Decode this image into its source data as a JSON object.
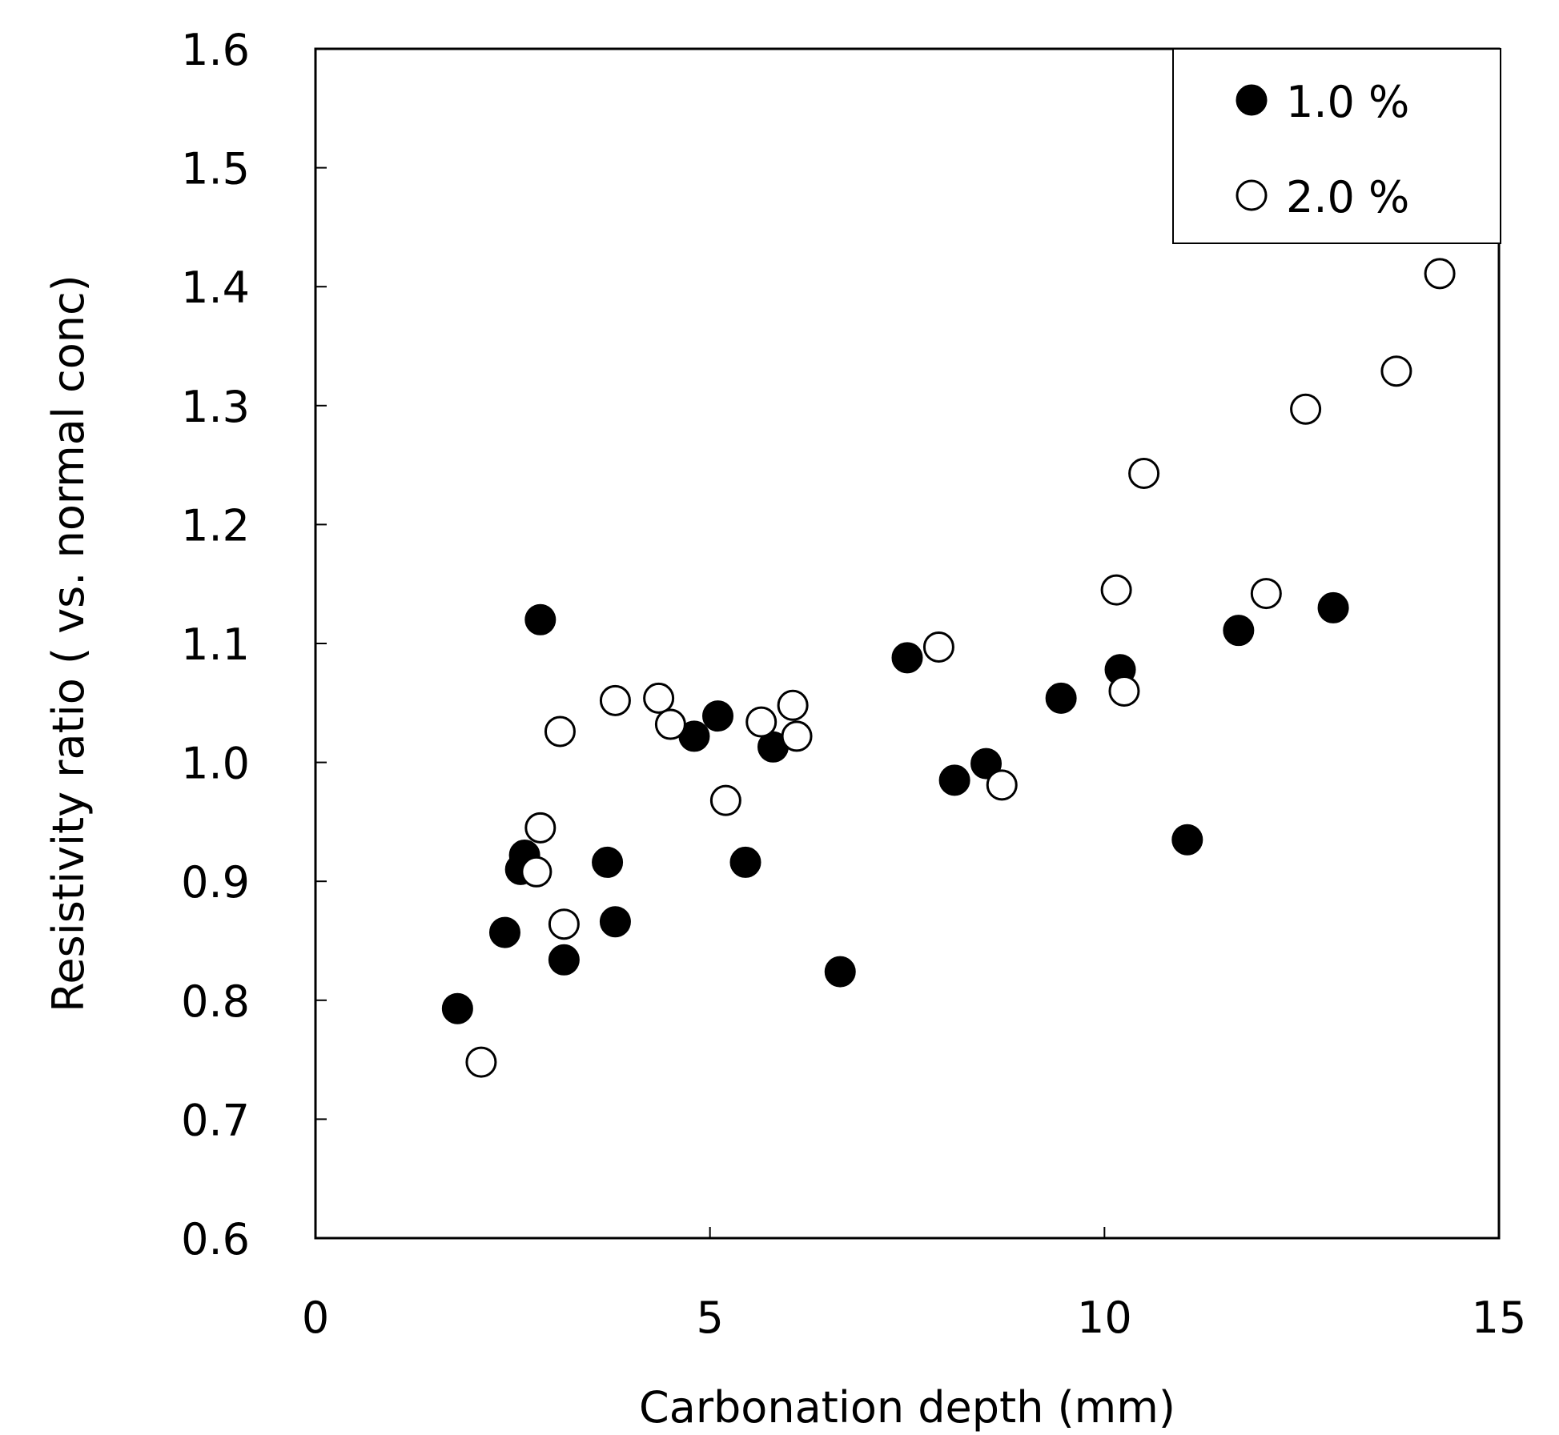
{
  "chart_data": {
    "type": "scatter",
    "title": "",
    "xlabel": "Carbonation depth (mm)",
    "ylabel": "Resistivity ratio ( vs. normal conc)",
    "xlim": [
      0,
      15
    ],
    "ylim": [
      0.6,
      1.6
    ],
    "xticks": [
      0,
      5,
      10,
      15
    ],
    "xtick_labels": [
      "0",
      "5",
      "10",
      "15"
    ],
    "yticks": [
      0.6,
      0.7,
      0.8,
      0.9,
      1.0,
      1.1,
      1.2,
      1.3,
      1.4,
      1.5,
      1.6
    ],
    "ytick_labels": [
      "0.6",
      "0.7",
      "0.8",
      "0.9",
      "1.0",
      "1.1",
      "1.2",
      "1.3",
      "1.4",
      "1.5",
      "1.6"
    ],
    "grid": false,
    "legend_position": "top-right",
    "series": [
      {
        "name": "1.0 %",
        "marker": "filled-circle",
        "color": "#000000",
        "points": [
          [
            1.8,
            0.793
          ],
          [
            2.4,
            0.857
          ],
          [
            2.6,
            0.91
          ],
          [
            2.65,
            0.922
          ],
          [
            2.85,
            1.12
          ],
          [
            3.15,
            0.834
          ],
          [
            3.7,
            0.916
          ],
          [
            3.8,
            0.866
          ],
          [
            4.8,
            1.022
          ],
          [
            5.1,
            1.039
          ],
          [
            5.45,
            0.916
          ],
          [
            5.8,
            1.013
          ],
          [
            6.65,
            0.824
          ],
          [
            7.5,
            1.088
          ],
          [
            8.1,
            0.985
          ],
          [
            8.5,
            0.999
          ],
          [
            9.45,
            1.054
          ],
          [
            10.2,
            1.078
          ],
          [
            11.05,
            0.935
          ],
          [
            11.7,
            1.111
          ],
          [
            12.9,
            1.13
          ]
        ]
      },
      {
        "name": "2.0 %",
        "marker": "open-circle",
        "color": "#000000",
        "points": [
          [
            2.1,
            0.748
          ],
          [
            2.8,
            0.908
          ],
          [
            2.85,
            0.945
          ],
          [
            3.1,
            1.026
          ],
          [
            3.15,
            0.864
          ],
          [
            3.8,
            1.052
          ],
          [
            4.35,
            1.054
          ],
          [
            4.5,
            1.032
          ],
          [
            5.2,
            0.968
          ],
          [
            5.65,
            1.034
          ],
          [
            6.05,
            1.048
          ],
          [
            6.1,
            1.022
          ],
          [
            7.9,
            1.097
          ],
          [
            8.7,
            0.981
          ],
          [
            10.15,
            1.145
          ],
          [
            10.25,
            1.06
          ],
          [
            10.5,
            1.243
          ],
          [
            12.05,
            1.142
          ],
          [
            12.55,
            1.297
          ],
          [
            13.7,
            1.329
          ],
          [
            14.25,
            1.411
          ]
        ]
      }
    ]
  }
}
